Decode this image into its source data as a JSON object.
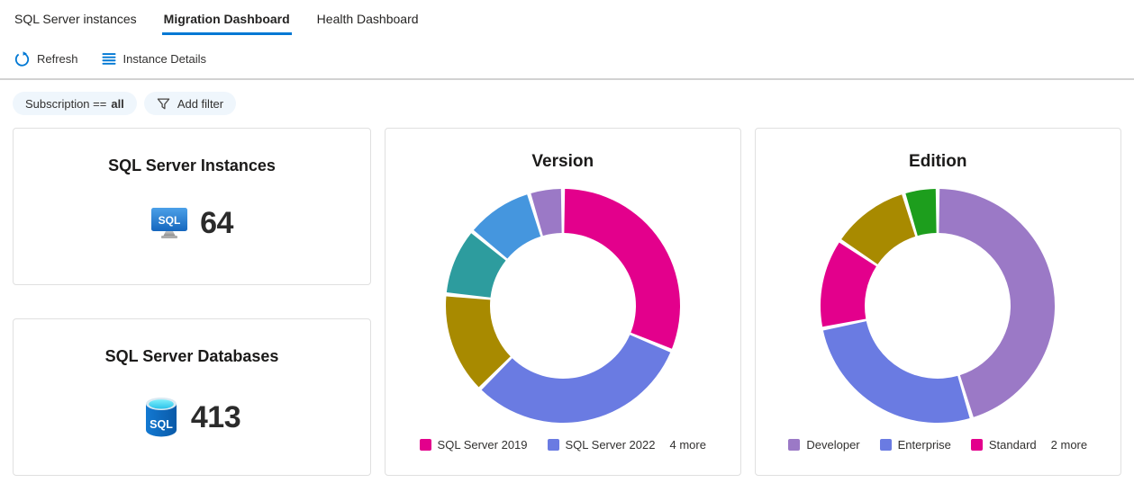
{
  "tabs": [
    {
      "label": "SQL Server instances"
    },
    {
      "label": "Migration Dashboard"
    },
    {
      "label": "Health Dashboard"
    }
  ],
  "active_tab": "Migration Dashboard",
  "toolbar": {
    "refresh_label": "Refresh",
    "instance_details_label": "Instance Details"
  },
  "filters": {
    "subscription_field": "Subscription ==",
    "subscription_value": "all",
    "add_filter_label": "Add filter"
  },
  "stat_cards": {
    "instances": {
      "title": "SQL Server Instances",
      "value": "64",
      "icon": "sql-server-monitor-icon"
    },
    "databases": {
      "title": "SQL Server Databases",
      "value": "413",
      "icon": "sql-database-icon"
    }
  },
  "chart_data": [
    {
      "type": "donut",
      "title": "Version",
      "total": 64,
      "legend_position": "bottom",
      "legend_overflow": "4 more",
      "slices": [
        {
          "label": "SQL Server 2019",
          "value": 20,
          "color": "#E3008C"
        },
        {
          "label": "SQL Server 2022",
          "value": 20,
          "color": "#6A7BE2"
        },
        {
          "label": "",
          "value": 9,
          "color": "#A88A00"
        },
        {
          "label": "",
          "value": 6,
          "color": "#2D9C9E"
        },
        {
          "label": "",
          "value": 6,
          "color": "#4596DE"
        },
        {
          "label": "",
          "value": 3,
          "color": "#9B79C6"
        }
      ]
    },
    {
      "type": "donut",
      "title": "Edition",
      "total": 64,
      "legend_position": "bottom",
      "legend_overflow": "2 more",
      "slices": [
        {
          "label": "Developer",
          "value": 29,
          "color": "#9B79C6"
        },
        {
          "label": "Enterprise",
          "value": 17,
          "color": "#6A7BE2"
        },
        {
          "label": "Standard",
          "value": 8,
          "color": "#E3008C"
        },
        {
          "label": "",
          "value": 7,
          "color": "#A88A00"
        },
        {
          "label": "",
          "value": 3,
          "color": "#1D9E1D"
        }
      ]
    }
  ],
  "colors": {
    "accent": "#0078D4",
    "pill_background": "#EFF6FC",
    "card_border": "#E0E0E0",
    "text_primary": "#323130"
  }
}
